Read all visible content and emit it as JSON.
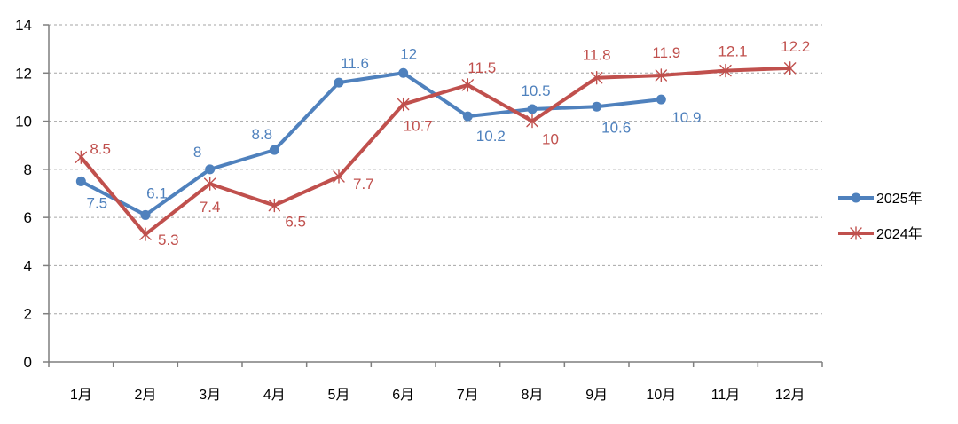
{
  "chart_data": {
    "type": "line",
    "categories": [
      "1月",
      "2月",
      "3月",
      "4月",
      "5月",
      "6月",
      "7月",
      "8月",
      "9月",
      "10月",
      "11月",
      "12月"
    ],
    "ylim": [
      0,
      14
    ],
    "yticks": [
      0,
      2,
      4,
      6,
      8,
      10,
      12,
      14
    ],
    "grid": true,
    "legend_position": "right",
    "title": "",
    "xlabel": "",
    "ylabel": "",
    "series": [
      {
        "name": "2025年",
        "color": "#4f81bd",
        "marker": "circle",
        "values": [
          7.5,
          6.1,
          8,
          8.8,
          11.6,
          12,
          10.2,
          10.5,
          10.6,
          10.9,
          null,
          null
        ],
        "labels": [
          "7.5",
          "6.1",
          "8",
          "8.8",
          "11.6",
          "12",
          "10.2",
          "10.5",
          "10.6",
          "10.9",
          null,
          null
        ]
      },
      {
        "name": "2024年",
        "color": "#c0504d",
        "marker": "star",
        "values": [
          8.5,
          5.3,
          7.4,
          6.5,
          7.7,
          10.7,
          11.5,
          10,
          11.8,
          11.9,
          12.1,
          12.2
        ],
        "labels": [
          "8.5",
          "5.3",
          "7.4",
          "6.5",
          "7.7",
          "10.7",
          "11.5",
          "10",
          "11.8",
          "11.9",
          "12.1",
          "12.2"
        ]
      }
    ]
  }
}
